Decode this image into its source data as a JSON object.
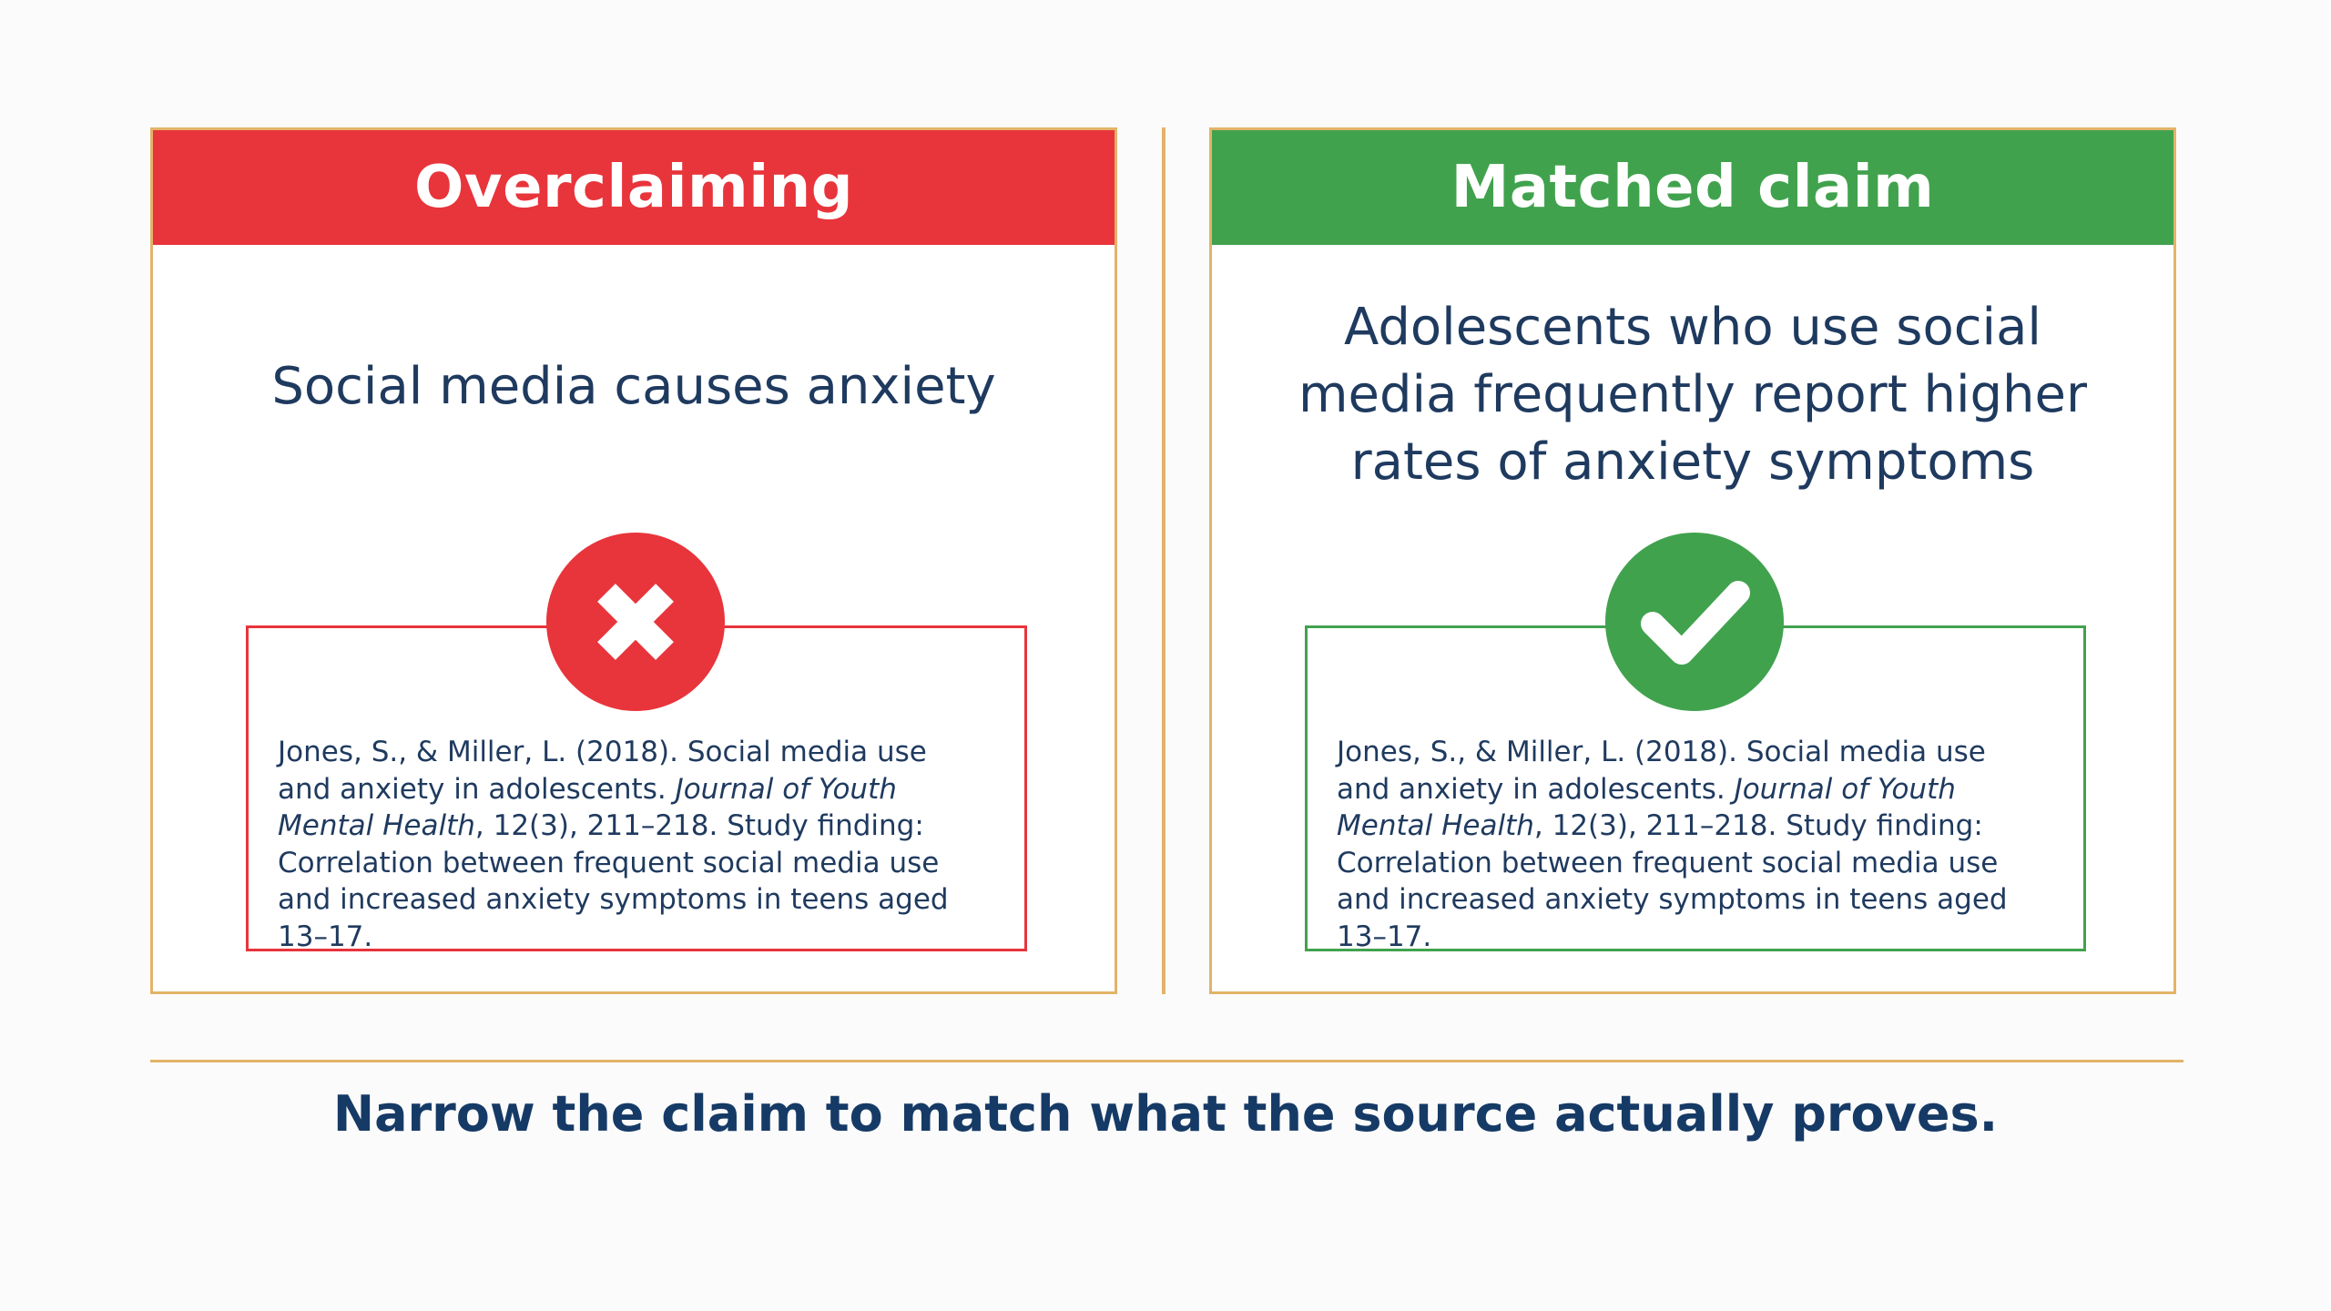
{
  "left_panel": {
    "title": "Overclaiming",
    "claim": "Social media causes anxiety",
    "status_icon": "x-mark-icon",
    "accent_color": "#e8343b",
    "source": {
      "citation_start": "Jones, S., & Miller, L. (2018). Social media use and anxiety in adolescents. ",
      "journal": "Journal of Youth Mental Health",
      "citation_end": ", 12(3), 211–218. Study finding: Correlation between frequent social media use and increased anxiety symptoms in teens aged 13–17."
    }
  },
  "right_panel": {
    "title": "Matched claim",
    "claim": "Adolescents who use social media frequently report higher rates of anxiety symptoms",
    "status_icon": "check-mark-icon",
    "accent_color": "#41a24e",
    "source": {
      "citation_start": "Jones, S., & Miller, L. (2018). Social media use and anxiety in adolescents. ",
      "journal": "Journal of Youth Mental Health",
      "citation_end": ", 12(3), 211–218. Study finding: Correlation between frequent social media use and increased anxiety symptoms in teens aged 13–17."
    }
  },
  "takeaway": "Narrow the claim to match what the source actually proves.",
  "colors": {
    "border": "#e3b368",
    "text": "#1f3a5f",
    "takeaway_text": "#163a66"
  }
}
